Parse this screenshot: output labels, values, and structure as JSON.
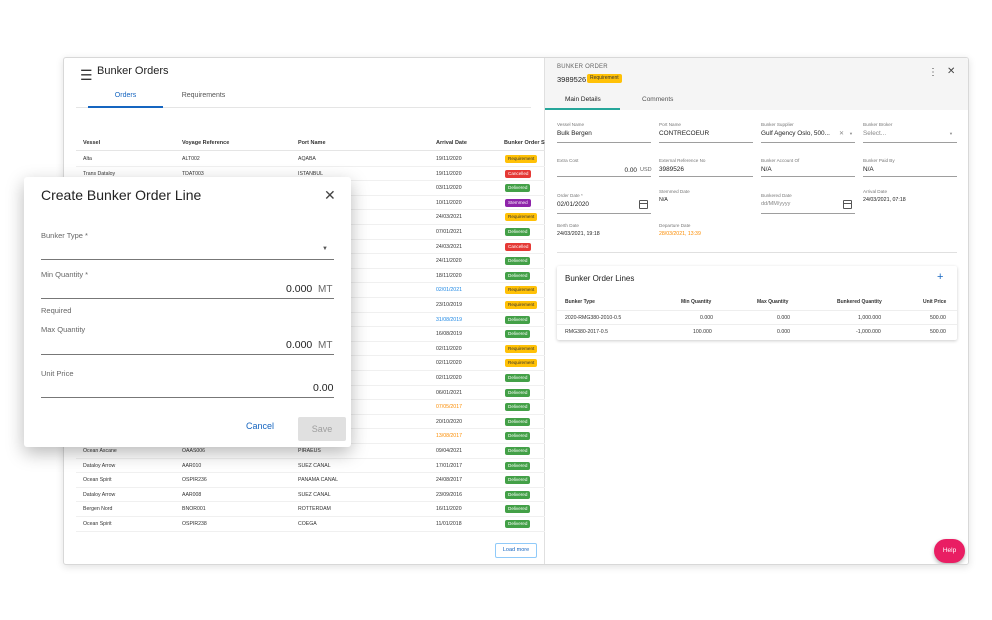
{
  "app": {
    "title": "Bunker Orders",
    "load_more": "Load more",
    "help": "Help"
  },
  "tabs": [
    {
      "label": "Orders"
    },
    {
      "label": "Requirements"
    }
  ],
  "table": {
    "headers": [
      "Vessel",
      "Voyage Reference",
      "Port Name",
      "Arrival Date",
      "Bunker Order S"
    ],
    "rows": [
      {
        "vessel": "Alta",
        "voyage": "ALT002",
        "port": "AQABA",
        "date": "19/11/2020",
        "status": "Requirement"
      },
      {
        "vessel": "Trans Dataloy",
        "voyage": "TDAT003",
        "port": "ISTANBUL",
        "date": "19/11/2020",
        "status": "Cancelled"
      },
      {
        "vessel": "",
        "voyage": "",
        "port": "",
        "date": "03/11/2020",
        "status": "Delivered"
      },
      {
        "vessel": "",
        "voyage": "",
        "port": "",
        "date": "10/11/2020",
        "status": "Stemmed"
      },
      {
        "vessel": "",
        "voyage": "",
        "port": "",
        "date": "24/03/2021",
        "status": "Requirement"
      },
      {
        "vessel": "",
        "voyage": "",
        "port": "",
        "date": "07/01/2021",
        "status": "Delivered"
      },
      {
        "vessel": "",
        "voyage": "",
        "port": "",
        "date": "24/03/2021",
        "status": "Cancelled"
      },
      {
        "vessel": "",
        "voyage": "",
        "port": "",
        "date": "24/11/2020",
        "status": "Delivered"
      },
      {
        "vessel": "",
        "voyage": "",
        "port": "",
        "date": "18/11/2020",
        "status": "Delivered"
      },
      {
        "vessel": "",
        "voyage": "",
        "port": "",
        "date": "02/01/2021",
        "status": "Requirement"
      },
      {
        "vessel": "",
        "voyage": "",
        "port": "",
        "date": "23/10/2019",
        "status": "Requirement"
      },
      {
        "vessel": "",
        "voyage": "",
        "port": "",
        "date": "31/08/2019",
        "status": "Delivered"
      },
      {
        "vessel": "",
        "voyage": "",
        "port": "",
        "date": "16/08/2019",
        "status": "Delivered"
      },
      {
        "vessel": "",
        "voyage": "",
        "port": "",
        "date": "02/11/2020",
        "status": "Requirement"
      },
      {
        "vessel": "",
        "voyage": "",
        "port": "",
        "date": "02/11/2020",
        "status": "Requirement"
      },
      {
        "vessel": "",
        "voyage": "",
        "port": "",
        "date": "02/11/2020",
        "status": "Delivered"
      },
      {
        "vessel": "",
        "voyage": "",
        "port": "",
        "date": "06/01/2021",
        "status": "Delivered"
      },
      {
        "vessel": "",
        "voyage": "",
        "port": "",
        "date": "07/05/2017",
        "status": "Delivered"
      },
      {
        "vessel": "",
        "voyage": "",
        "port": "",
        "date": "20/10/2020",
        "status": "Delivered"
      },
      {
        "vessel": "",
        "voyage": "",
        "port": "",
        "date": "13/08/2017",
        "status": "Delivered"
      },
      {
        "vessel": "Ocean Ascane",
        "voyage": "OAAS006",
        "port": "PIRAEUS",
        "date": "09/04/2021",
        "status": "Delivered"
      },
      {
        "vessel": "Dataloy Arrow",
        "voyage": "AAR010",
        "port": "SUEZ CANAL",
        "date": "17/01/2017",
        "status": "Delivered"
      },
      {
        "vessel": "Ocean Spirit",
        "voyage": "OSPIR236",
        "port": "PANAMA CANAL",
        "date": "24/08/2017",
        "status": "Delivered"
      },
      {
        "vessel": "Dataloy Arrow",
        "voyage": "AAR008",
        "port": "SUEZ CANAL",
        "date": "23/09/2016",
        "status": "Delivered"
      },
      {
        "vessel": "Bergen Nord",
        "voyage": "BNOR001",
        "port": "ROTTERDAM",
        "date": "16/11/2020",
        "status": "Delivered"
      },
      {
        "vessel": "Ocean Spirit",
        "voyage": "OSPIR238",
        "port": "COEGA",
        "date": "11/01/2018",
        "status": "Delivered"
      }
    ]
  },
  "detail": {
    "kicker": "BUNKER ORDER",
    "number": "3989526",
    "badge": "Requirement",
    "tabs": [
      "Main Details",
      "Comments"
    ],
    "fields": {
      "vessel_name": {
        "label": "Vessel Name",
        "value": "Bulk Bergen"
      },
      "port_name": {
        "label": "Port Name",
        "value": "CONTRECOEUR"
      },
      "bunker_supplier": {
        "label": "Bunker Supplier",
        "value": "Gulf Agency Oslo, 500..."
      },
      "bunker_broker": {
        "label": "Bunker Broker",
        "value": "Select..."
      },
      "extra_cost": {
        "label": "Extra Cost",
        "value": "0.00",
        "unit": "USD"
      },
      "ext_ref": {
        "label": "External Reference No",
        "value": "3989526"
      },
      "bunker_account": {
        "label": "Bunker Account Of",
        "value": "N/A"
      },
      "bunker_paid_by": {
        "label": "Bunker Paid By",
        "value": "N/A"
      },
      "order_date": {
        "label": "Order Date *",
        "value": "02/01/2020"
      },
      "stemmed_date": {
        "label": "Stemmed Date",
        "value": "N/A"
      },
      "bunkered_date": {
        "label": "Bunkered Date",
        "value": "dd/MM/yyyy"
      },
      "arrival_date": {
        "label": "Arrival Date",
        "value": "24/03/2021, 07:18"
      },
      "berth_date": {
        "label": "Berth Date",
        "value": "24/03/2021, 19:18"
      },
      "departure_date": {
        "label": "Departure Date",
        "value": "28/03/2021, 13:39"
      }
    },
    "lines": {
      "title": "Bunker Order Lines",
      "headers": [
        "Bunker Type",
        "Min Quantity",
        "Max Quantity",
        "Bunkered Quantity",
        "Unit Price"
      ],
      "rows": [
        {
          "type": "2020-RMG380-2010-0.5",
          "min": "0.000",
          "max": "0.000",
          "bunkered": "1,000.000",
          "price": "500.00"
        },
        {
          "type": "RMG380-2017-0.5",
          "min": "100.000",
          "max": "0.000",
          "bunkered": "-1,000.000",
          "price": "500.00"
        }
      ]
    }
  },
  "dialog": {
    "title": "Create Bunker Order Line",
    "bunker_type_label": "Bunker Type *",
    "min_qty_label": "Min Quantity *",
    "min_qty_value": "0.000",
    "required_text": "Required",
    "max_qty_label": "Max Quantity",
    "max_qty_value": "0.000",
    "unit": "MT",
    "unit_price_label": "Unit Price",
    "unit_price_value": "0.00",
    "cancel": "Cancel",
    "save": "Save"
  },
  "colors": {
    "primary": "#1565c0",
    "requirement": "#ffc107",
    "cancelled": "#e53935",
    "delivered": "#43a047",
    "stemmed": "#8e24aa",
    "help": "#e91e63"
  }
}
